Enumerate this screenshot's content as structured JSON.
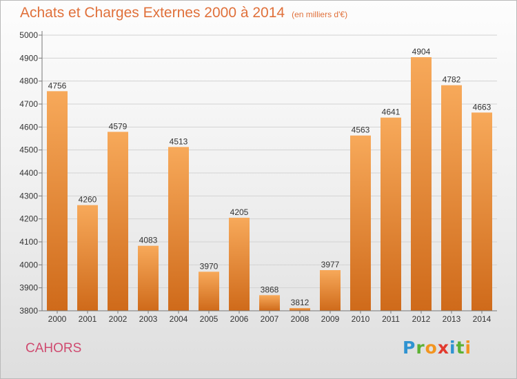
{
  "title": "Achats et Charges Externes 2000 à 2014",
  "unit": "(en milliers d'€)",
  "city": "CAHORS",
  "brand": {
    "letters": [
      "P",
      "r",
      "o",
      "x",
      "i",
      "t",
      "i"
    ],
    "colors": [
      "#2f93d1",
      "#5cb134",
      "#f29520",
      "#e23a2e",
      "#2f93d1",
      "#5cb134",
      "#f29520"
    ]
  },
  "colors": {
    "title": "#e0703a",
    "bar_light": "#f7a95a",
    "bar_dark": "#cf6a1a",
    "city": "#cf4a6f"
  },
  "chart_data": {
    "type": "bar",
    "categories": [
      "2000",
      "2001",
      "2002",
      "2003",
      "2004",
      "2005",
      "2006",
      "2007",
      "2008",
      "2009",
      "2010",
      "2011",
      "2012",
      "2013",
      "2014"
    ],
    "values": [
      4756,
      4260,
      4579,
      4083,
      4513,
      3970,
      4205,
      3868,
      3812,
      3977,
      4563,
      4641,
      4904,
      4782,
      4663
    ],
    "ylim": [
      3800,
      5000
    ],
    "yticks": [
      3800,
      3900,
      4000,
      4100,
      4200,
      4300,
      4400,
      4500,
      4600,
      4700,
      4800,
      4900,
      5000
    ],
    "grid": true,
    "legend": "none"
  }
}
